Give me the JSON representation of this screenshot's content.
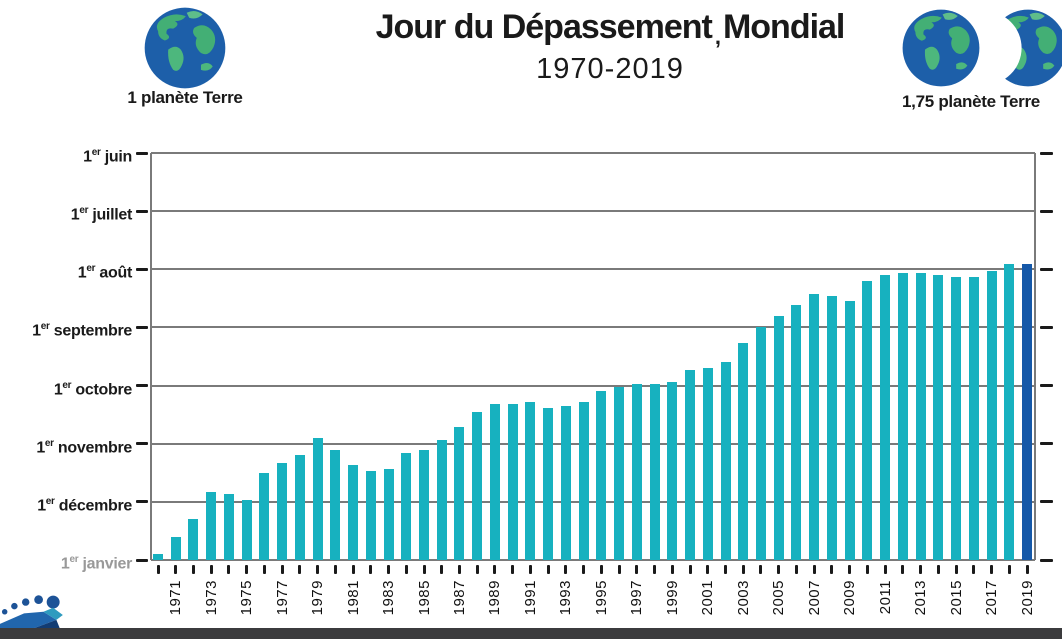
{
  "header": {
    "title_part1": "Jour du Dépassement",
    "title_mark": ",",
    "title_part2": "Mondial",
    "subtitle": "1970-2019",
    "left_legend_label": "1 planète Terre",
    "right_legend_label": "1,75 planète Terre"
  },
  "colors": {
    "bar": "#17b1bf",
    "highlight": "#1558a8",
    "gridline": "#7a7a7a",
    "footer_band": "#3b3b3d",
    "earth_ocean": "#1d5fa9",
    "earth_land": "#43af75",
    "footprint_blue": "#1d5397"
  },
  "chart_data": {
    "type": "bar",
    "title": "Jour du Dépassement Mondial",
    "subtitle": "1970-2019",
    "legend_left": "1 planète Terre",
    "legend_right": "1,75 planète Terre",
    "grid": "on",
    "y_axis": {
      "direction": "dates earlier in year are higher",
      "top_value": "1er juin",
      "bottom_value": "1er janvier",
      "labels": [
        {
          "prefix": "1",
          "sup": "er",
          "month": "juin"
        },
        {
          "prefix": "1",
          "sup": "er",
          "month": "juillet"
        },
        {
          "prefix": "1",
          "sup": "er",
          "month": "août"
        },
        {
          "prefix": "1",
          "sup": "er",
          "month": "septembre"
        },
        {
          "prefix": "1",
          "sup": "er",
          "month": "octobre"
        },
        {
          "prefix": "1",
          "sup": "er",
          "month": "novembre"
        },
        {
          "prefix": "1",
          "sup": "er",
          "month": "décembre"
        },
        {
          "prefix": "1",
          "sup": "er",
          "month": "janvier"
        }
      ]
    },
    "x_axis": {
      "range": [
        1970,
        2019
      ],
      "labeled_years": [
        1971,
        1973,
        1975,
        1977,
        1979,
        1981,
        1983,
        1985,
        1987,
        1989,
        1991,
        1993,
        1995,
        1997,
        1999,
        2001,
        2003,
        2005,
        2007,
        2009,
        2011,
        2013,
        2015,
        2017,
        2019
      ]
    },
    "highlight_year": 2019,
    "years": [
      {
        "year": 1970,
        "date": "29 décembre"
      },
      {
        "year": 1971,
        "date": "20 décembre"
      },
      {
        "year": 1972,
        "date": "10 décembre"
      },
      {
        "year": 1973,
        "date": "26 novembre"
      },
      {
        "year": 1974,
        "date": "27 novembre"
      },
      {
        "year": 1975,
        "date": "30 novembre"
      },
      {
        "year": 1976,
        "date": "16 novembre"
      },
      {
        "year": 1977,
        "date": "11 novembre"
      },
      {
        "year": 1978,
        "date": "7 novembre"
      },
      {
        "year": 1979,
        "date": "29 octobre"
      },
      {
        "year": 1980,
        "date": "4 novembre"
      },
      {
        "year": 1981,
        "date": "12 novembre"
      },
      {
        "year": 1982,
        "date": "15 novembre"
      },
      {
        "year": 1983,
        "date": "14 novembre"
      },
      {
        "year": 1984,
        "date": "6 novembre"
      },
      {
        "year": 1985,
        "date": "4 novembre"
      },
      {
        "year": 1986,
        "date": "30 octobre"
      },
      {
        "year": 1987,
        "date": "23 octobre"
      },
      {
        "year": 1988,
        "date": "15 octobre"
      },
      {
        "year": 1989,
        "date": "11 octobre"
      },
      {
        "year": 1990,
        "date": "11 octobre"
      },
      {
        "year": 1991,
        "date": "10 octobre"
      },
      {
        "year": 1992,
        "date": "13 octobre"
      },
      {
        "year": 1993,
        "date": "12 octobre"
      },
      {
        "year": 1994,
        "date": "10 octobre"
      },
      {
        "year": 1995,
        "date": "4 octobre"
      },
      {
        "year": 1996,
        "date": "2 octobre"
      },
      {
        "year": 1997,
        "date": "30 septembre"
      },
      {
        "year": 1998,
        "date": "30 septembre"
      },
      {
        "year": 1999,
        "date": "29 septembre"
      },
      {
        "year": 2000,
        "date": "23 septembre"
      },
      {
        "year": 2001,
        "date": "22 septembre"
      },
      {
        "year": 2002,
        "date": "19 septembre"
      },
      {
        "year": 2003,
        "date": "9 septembre"
      },
      {
        "year": 2004,
        "date": "1 septembre"
      },
      {
        "year": 2005,
        "date": "26 août"
      },
      {
        "year": 2006,
        "date": "20 août"
      },
      {
        "year": 2007,
        "date": "14 août"
      },
      {
        "year": 2008,
        "date": "15 août"
      },
      {
        "year": 2009,
        "date": "18 août"
      },
      {
        "year": 2010,
        "date": "7 août"
      },
      {
        "year": 2011,
        "date": "4 août"
      },
      {
        "year": 2012,
        "date": "3 août"
      },
      {
        "year": 2013,
        "date": "3 août"
      },
      {
        "year": 2014,
        "date": "4 août"
      },
      {
        "year": 2015,
        "date": "5 août"
      },
      {
        "year": 2016,
        "date": "5 août"
      },
      {
        "year": 2017,
        "date": "2 août"
      },
      {
        "year": 2018,
        "date": "29 juillet"
      },
      {
        "year": 2019,
        "date": "29 juillet"
      }
    ]
  }
}
